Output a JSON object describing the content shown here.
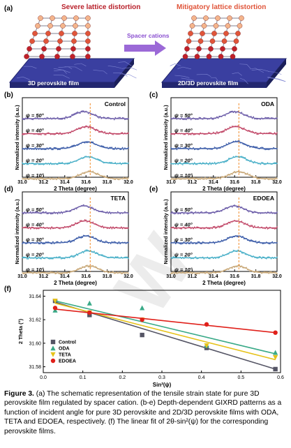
{
  "panel_a": {
    "letter": "(a)",
    "left_title": "Severe lattice distortion",
    "right_title": "Mitigatory lattice distortion",
    "arrow_label": "Spacer cations",
    "left_film": "3D perovskite film",
    "right_film": "2D/3D perovskite film",
    "colors": {
      "film": "#3a3fa0",
      "left_title": "#b8202a",
      "right_title": "#e0553a",
      "arrow": "#8a4fd0",
      "atom_top": "#f4b58c",
      "atom_mid": "#e0553a",
      "atom_bottom": "#c0202a"
    }
  },
  "gixrd_common": {
    "ylabel": "Normalized intensity (a.u.)",
    "xlabel": "2 Theta (degree)",
    "xticks": [
      "31.0",
      "31.2",
      "31.4",
      "31.6",
      "31.8",
      "32.0"
    ],
    "psi_labels": [
      "ψ = 50°",
      "ψ = 40°",
      "ψ = 30°",
      "ψ = 20°",
      "ψ = 10°"
    ],
    "series_colors": [
      "#6b5ca8",
      "#c24a6a",
      "#3a5ba8",
      "#4ab0c8",
      "#c8a878"
    ],
    "dashed_line_color": "#f08a2a"
  },
  "chart_data": [
    {
      "type": "line",
      "panel": "(b)",
      "title": "Control",
      "x_range": [
        31.0,
        32.0
      ],
      "peak_centers": [
        31.58,
        31.6,
        31.61,
        31.62,
        31.63
      ],
      "reference_line_x": 31.64
    },
    {
      "type": "line",
      "panel": "(c)",
      "title": "ODA",
      "x_range": [
        31.0,
        32.0
      ],
      "peak_centers": [
        31.6,
        31.61,
        31.62,
        31.63,
        31.64
      ],
      "reference_line_x": 31.64
    },
    {
      "type": "line",
      "panel": "(d)",
      "title": "TETA",
      "x_range": [
        31.0,
        32.0
      ],
      "peak_centers": [
        31.58,
        31.59,
        31.6,
        31.62,
        31.63
      ],
      "reference_line_x": 31.64
    },
    {
      "type": "line",
      "panel": "(e)",
      "title": "EDOEA",
      "x_range": [
        31.0,
        32.0
      ],
      "peak_centers": [
        31.6,
        31.61,
        31.62,
        31.62,
        31.63
      ],
      "reference_line_x": 31.64
    },
    {
      "type": "scatter",
      "panel": "(f)",
      "xlabel": "Sin²(ψ)",
      "ylabel": "2 Theta (°)",
      "xlim": [
        0.0,
        0.6
      ],
      "ylim": [
        31.575,
        31.645
      ],
      "xticks": [
        "0.0",
        "0.1",
        "0.2",
        "0.3",
        "0.4",
        "0.5",
        "0.6"
      ],
      "yticks": [
        "31.58",
        "31.60",
        "31.62",
        "31.64"
      ],
      "x": [
        0.03,
        0.117,
        0.25,
        0.413,
        0.587
      ],
      "series": [
        {
          "name": "Control",
          "color": "#555565",
          "marker": "square",
          "values": [
            31.636,
            31.624,
            31.607,
            31.596,
            31.578
          ],
          "fit": [
            31.635,
            31.578
          ]
        },
        {
          "name": "ODA",
          "color": "#3aaa88",
          "marker": "triangle-up",
          "values": [
            31.628,
            31.634,
            31.63,
            31.598,
            31.592
          ],
          "fit": [
            31.636,
            31.591
          ]
        },
        {
          "name": "TETA",
          "color": "#e6c21a",
          "marker": "triangle-down",
          "values": [
            31.636,
            31.626,
            31.62,
            31.598,
            31.588
          ],
          "fit": [
            31.634,
            31.586
          ]
        },
        {
          "name": "EDOEA",
          "color": "#e0201a",
          "marker": "circle",
          "values": [
            31.63,
            31.626,
            31.62,
            31.616,
            31.609
          ],
          "fit": [
            31.629,
            31.609
          ]
        }
      ]
    }
  ],
  "caption": {
    "label": "Figure 3.",
    "text": "(a) The schematic representation of the tensile strain state for pure 3D perovskite film regulated by spacer cation. (b-e) Depth-dependent GIXRD patterns as a function of incident angle for pure 3D perovskite and 2D/3D perovskite films with ODA, TETA and EDOEA, respectively. (f) The linear fit of 2θ-sin²(ψ) for the corresponding perovskite films."
  }
}
